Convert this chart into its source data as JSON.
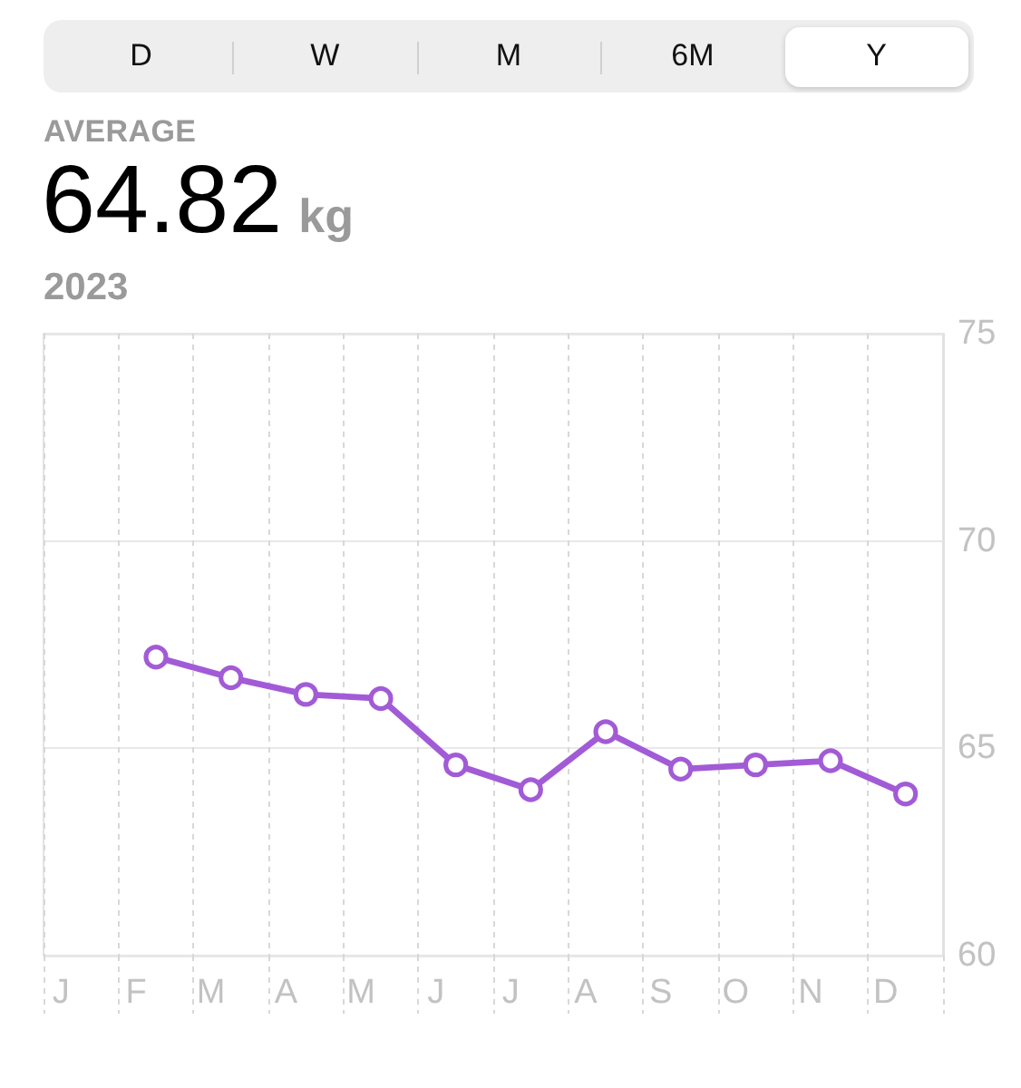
{
  "chart_data": {
    "type": "line",
    "title": "64.82 kg",
    "subtitle": "2023",
    "annotations": [
      "D",
      "W",
      "M",
      "6M",
      "Y",
      "AVERAGE"
    ],
    "categories": [
      "J",
      "F",
      "M",
      "A",
      "M",
      "J",
      "J",
      "A",
      "S",
      "O",
      "N",
      "D"
    ],
    "values": [
      null,
      67.2,
      66.7,
      66.3,
      66.2,
      64.6,
      64.0,
      65.4,
      64.5,
      64.6,
      64.7,
      63.9
    ],
    "color": "#a25bd6",
    "ylim": [
      60,
      75
    ],
    "yticks": [
      60,
      65,
      70,
      75
    ],
    "grid": true,
    "marker": "circle"
  }
}
